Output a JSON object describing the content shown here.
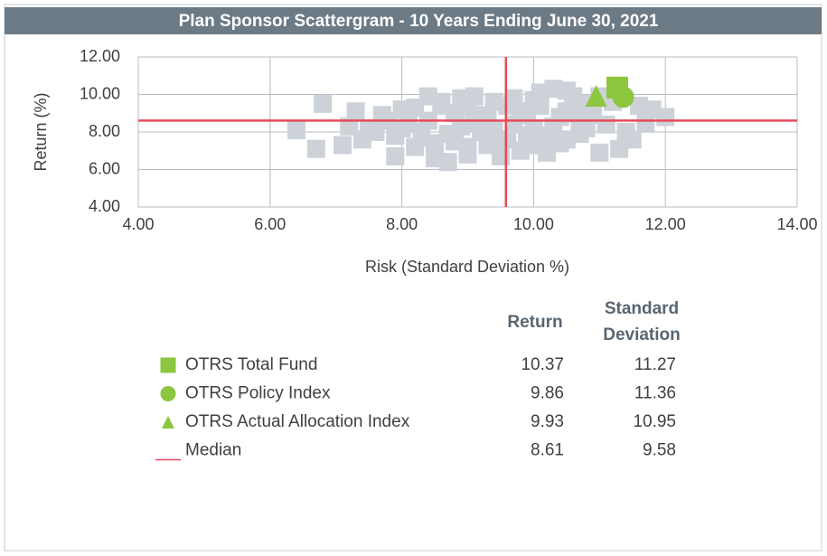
{
  "chart_data": {
    "type": "scatter",
    "title": "Plan Sponsor Scattergram - 10 Years Ending June 30, 2021",
    "xlabel": "Risk (Standard Deviation %)",
    "ylabel": "Return (%)",
    "xlim": [
      4,
      14
    ],
    "ylim": [
      4,
      12
    ],
    "xticks": [
      {
        "value": 4,
        "label": "4.00"
      },
      {
        "value": 6,
        "label": "6.00"
      },
      {
        "value": 8,
        "label": "8.00"
      },
      {
        "value": 10,
        "label": "10.00"
      },
      {
        "value": 12,
        "label": "12.00"
      },
      {
        "value": 14,
        "label": "14.00"
      }
    ],
    "yticks": [
      {
        "value": 4,
        "label": "4.00"
      },
      {
        "value": 6,
        "label": "6.00"
      },
      {
        "value": 8,
        "label": "8.00"
      },
      {
        "value": 10,
        "label": "10.00"
      },
      {
        "value": 12,
        "label": "12.00"
      }
    ],
    "grid": true,
    "table_headers": [
      "Return",
      "Standard Deviation"
    ],
    "series": [
      {
        "color": "#cdd2d9",
        "marker": "square",
        "x": [
          6.4,
          6.7,
          6.8,
          7.1,
          7.3,
          7.4,
          7.2,
          7.6,
          7.8,
          7.9,
          8.0,
          8.2,
          8.4,
          8.5,
          8.7,
          8.9,
          9.0,
          9.1,
          9.3,
          9.5,
          9.6,
          9.8,
          10.0,
          10.2,
          10.3,
          10.5,
          10.8,
          11.0,
          11.3,
          11.5,
          11.6,
          11.8,
          12.0,
          11.1,
          10.9,
          7.7,
          7.9,
          8.1,
          8.3,
          8.6,
          8.8,
          9.2,
          9.4,
          9.7,
          9.9,
          10.1,
          10.4,
          10.6,
          10.7,
          11.2,
          8.2,
          8.5,
          8.8,
          9.1,
          9.4,
          9.7,
          10.0,
          10.3,
          10.6,
          8.0,
          8.4,
          8.7,
          9.0,
          9.3,
          9.6,
          9.9,
          10.2,
          10.5,
          10.8,
          8.3,
          8.6,
          8.9,
          9.2,
          9.5,
          9.8,
          10.1,
          10.4,
          10.7,
          11.0,
          11.4,
          11.7,
          7.5,
          9.0,
          10.0,
          10.5
        ],
        "y": [
          8.1,
          7.1,
          9.5,
          7.3,
          9.1,
          7.6,
          8.3,
          8.0,
          8.6,
          6.7,
          9.2,
          7.2,
          9.9,
          6.6,
          6.4,
          8.3,
          6.8,
          9.9,
          7.3,
          6.7,
          9.4,
          7.0,
          8.2,
          6.9,
          10.3,
          7.6,
          9.5,
          6.9,
          7.1,
          7.6,
          9.4,
          9.2,
          8.8,
          8.4,
          8.9,
          8.9,
          7.8,
          8.5,
          8.0,
          9.4,
          7.5,
          8.9,
          8.1,
          9.8,
          7.8,
          10.1,
          8.8,
          9.9,
          7.9,
          9.6,
          9.3,
          7.4,
          9.0,
          8.5,
          9.6,
          8.4,
          9.7,
          8.3,
          9.0,
          8.2,
          8.6,
          7.9,
          9.3,
          8.7,
          7.6,
          9.1,
          7.8,
          10.2,
          8.2,
          7.7,
          9.6,
          9.8,
          8.0,
          7.5,
          8.9,
          9.4,
          7.4,
          8.6,
          9.9,
          8.0,
          8.5,
          8.2,
          7.2,
          7.3,
          9.1
        ]
      },
      {
        "name": "OTRS Total Fund",
        "color": "#8dc63f",
        "marker": "square",
        "x": [
          11.27
        ],
        "y": [
          10.37
        ]
      },
      {
        "name": "OTRS Policy Index",
        "color": "#8dc63f",
        "marker": "circle",
        "x": [
          11.36
        ],
        "y": [
          9.86
        ]
      },
      {
        "name": "OTRS Actual Allocation Index",
        "color": "#8dc63f",
        "marker": "triangle",
        "x": [
          10.95
        ],
        "y": [
          9.93
        ]
      },
      {
        "name": "Median",
        "color": "#e8495a",
        "marker": "line",
        "x": [
          9.58
        ],
        "y": [
          8.61
        ]
      }
    ]
  }
}
